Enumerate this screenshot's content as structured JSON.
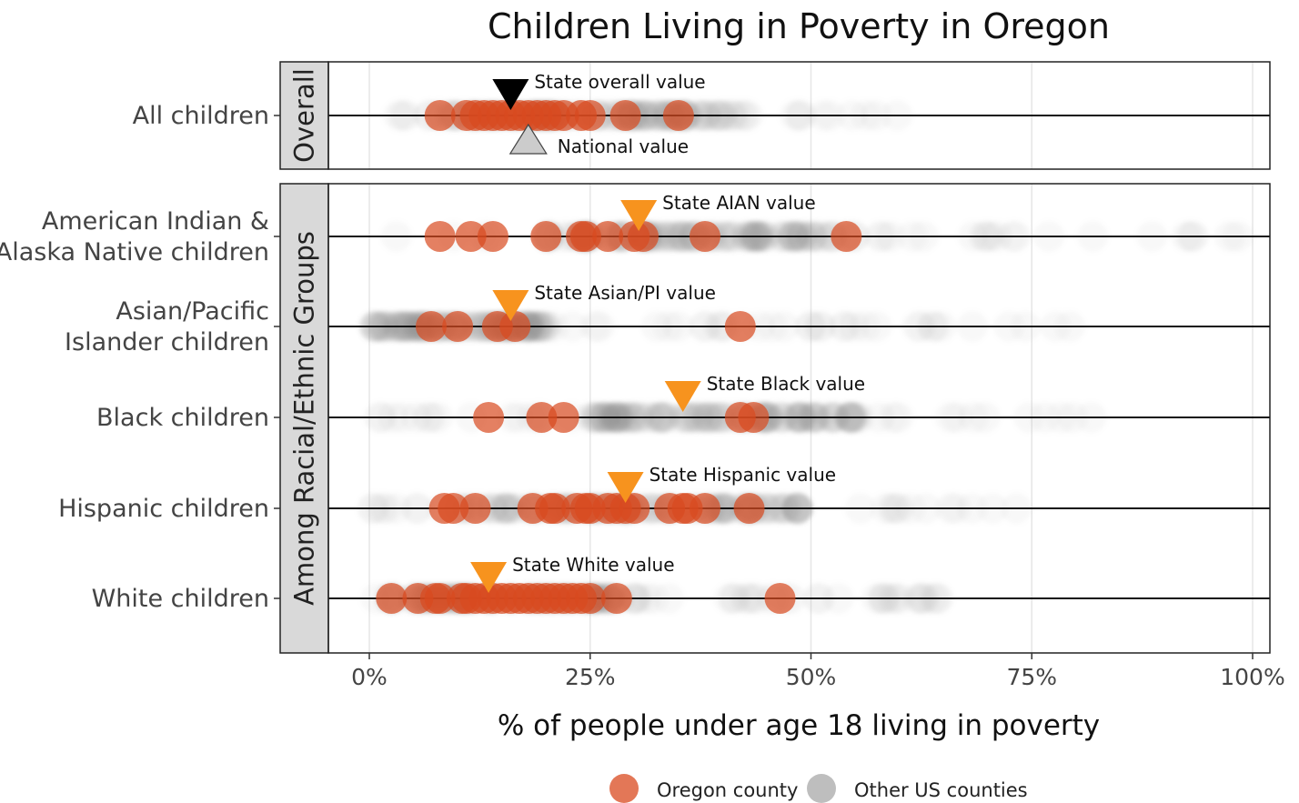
{
  "chart_data": {
    "type": "scatter",
    "title": "Children Living in Poverty in Oregon",
    "xlabel": "% of people under age 18 living in poverty",
    "xlim": [
      0,
      100
    ],
    "x_ticks": [
      "0%",
      "25%",
      "50%",
      "75%",
      "100%"
    ],
    "x_tick_values": [
      0,
      25,
      50,
      75,
      100
    ],
    "grid": true,
    "legend_position": "bottom",
    "legend": {
      "oregon": "Oregon county",
      "other": "Other US counties"
    },
    "colors": {
      "oregon": "#d94a1f",
      "other": "#b3b3b3",
      "state_marker": "#f7931e",
      "overall_state_marker": "#000000",
      "national_marker": "#cccccc"
    },
    "panels": [
      {
        "strip": "Overall",
        "rows": [
          0
        ]
      },
      {
        "strip": "Among Racial/Ethnic Groups",
        "rows": [
          1,
          2,
          3,
          4,
          5
        ]
      }
    ],
    "rows": [
      {
        "label": [
          "All children"
        ],
        "oregon_counties": [
          8,
          11,
          12,
          13,
          14,
          15,
          16,
          17,
          18,
          19,
          20,
          21,
          22,
          24,
          25,
          29,
          35
        ],
        "other_counties": {
          "range": [
            3,
            60
          ],
          "core": [
            6,
            40
          ]
        },
        "markers": [
          {
            "label": "State overall value",
            "value": 16,
            "kind": "state-overall",
            "position": "above"
          },
          {
            "label": "National value",
            "value": 18,
            "kind": "national",
            "position": "below"
          }
        ]
      },
      {
        "label": [
          "American Indian &",
          "Alaska Native children"
        ],
        "oregon_counties": [
          8,
          11.5,
          14,
          20,
          24,
          24.5,
          27,
          30,
          31,
          38,
          54
        ],
        "other_counties": {
          "range": [
            0,
            100
          ],
          "core": [
            20,
            55
          ]
        },
        "markers": [
          {
            "label": "State AIAN value",
            "value": 30.5,
            "kind": "state",
            "position": "above"
          }
        ]
      },
      {
        "label": [
          "Asian/Pacific",
          "Islander children"
        ],
        "oregon_counties": [
          7,
          10,
          14.5,
          16.5,
          42
        ],
        "other_counties": {
          "range": [
            0,
            80
          ],
          "core": [
            0,
            20
          ]
        },
        "markers": [
          {
            "label": "State Asian/PI value",
            "value": 16,
            "kind": "state",
            "position": "above"
          }
        ]
      },
      {
        "label": [
          "Black children"
        ],
        "oregon_counties": [
          13.5,
          19.5,
          22,
          42,
          43.5
        ],
        "other_counties": {
          "range": [
            0,
            85
          ],
          "core": [
            25,
            55
          ]
        },
        "markers": [
          {
            "label": "State Black value",
            "value": 35.5,
            "kind": "state",
            "position": "above"
          }
        ]
      },
      {
        "label": [
          "Hispanic children"
        ],
        "oregon_counties": [
          8.5,
          9.5,
          12,
          18.5,
          20.5,
          21,
          23.5,
          24.5,
          25,
          27,
          28,
          29,
          30,
          34,
          35.5,
          36,
          38,
          43
        ],
        "other_counties": {
          "range": [
            0,
            75
          ],
          "core": [
            10,
            50
          ]
        },
        "markers": [
          {
            "label": "State Hispanic value",
            "value": 29,
            "kind": "state",
            "position": "above"
          }
        ]
      },
      {
        "label": [
          "White children"
        ],
        "oregon_counties": [
          2.5,
          5.5,
          7.5,
          8,
          10.5,
          11,
          12,
          13,
          14,
          15,
          16,
          17,
          18,
          19,
          20,
          21,
          22,
          23,
          24,
          25,
          28,
          46.5
        ],
        "other_counties": {
          "range": [
            0,
            65
          ],
          "core": [
            2,
            30
          ]
        },
        "markers": [
          {
            "label": "State White value",
            "value": 13.5,
            "kind": "state",
            "position": "above"
          }
        ]
      }
    ]
  }
}
